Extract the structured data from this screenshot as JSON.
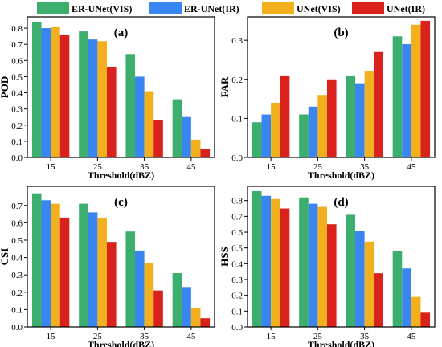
{
  "legend": {
    "items": [
      {
        "label": "ER-UNet(VIS)",
        "color": "#3CAE6E"
      },
      {
        "label": "ER-UNet(IR)",
        "color": "#3A86F0"
      },
      {
        "label": "UNet(VIS)",
        "color": "#F2B01E"
      },
      {
        "label": "UNet(IR)",
        "color": "#D9221B"
      }
    ]
  },
  "chart_data": [
    {
      "type": "bar",
      "panel": "(a)",
      "xlabel": "Threshold(dBZ)",
      "ylabel": "POD",
      "categories": [
        "15",
        "25",
        "35",
        "45"
      ],
      "ylim": [
        0,
        0.87
      ],
      "yticks": [
        "0.0",
        "0.1",
        "0.2",
        "0.3",
        "0.4",
        "0.5",
        "0.6",
        "0.7",
        "0.8"
      ],
      "series": [
        {
          "name": "ER-UNet(VIS)",
          "values": [
            0.84,
            0.78,
            0.64,
            0.36
          ]
        },
        {
          "name": "ER-UNet(IR)",
          "values": [
            0.8,
            0.73,
            0.5,
            0.25
          ]
        },
        {
          "name": "UNet(VIS)",
          "values": [
            0.81,
            0.72,
            0.41,
            0.11
          ]
        },
        {
          "name": "UNet(IR)",
          "values": [
            0.76,
            0.56,
            0.23,
            0.05
          ]
        }
      ]
    },
    {
      "type": "bar",
      "panel": "(b)",
      "xlabel": "Threshold(dBZ)",
      "ylabel": "FAR",
      "categories": [
        "15",
        "25",
        "35",
        "45"
      ],
      "ylim": [
        0,
        0.36
      ],
      "yticks": [
        "0.0",
        "0.1",
        "0.2",
        "0.3"
      ],
      "series": [
        {
          "name": "ER-UNet(VIS)",
          "values": [
            0.09,
            0.11,
            0.21,
            0.31
          ]
        },
        {
          "name": "ER-UNet(IR)",
          "values": [
            0.11,
            0.13,
            0.19,
            0.29
          ]
        },
        {
          "name": "UNet(VIS)",
          "values": [
            0.14,
            0.16,
            0.22,
            0.34
          ]
        },
        {
          "name": "UNet(IR)",
          "values": [
            0.21,
            0.2,
            0.27,
            0.35
          ]
        }
      ]
    },
    {
      "type": "bar",
      "panel": "(c)",
      "xlabel": "Threshold(dBZ)",
      "ylabel": "CSI",
      "categories": [
        "15",
        "25",
        "35",
        "45"
      ],
      "ylim": [
        0,
        0.81
      ],
      "yticks": [
        "0.0",
        "0.1",
        "0.2",
        "0.3",
        "0.4",
        "0.5",
        "0.6",
        "0.7"
      ],
      "series": [
        {
          "name": "ER-UNet(VIS)",
          "values": [
            0.77,
            0.71,
            0.55,
            0.31
          ]
        },
        {
          "name": "ER-UNet(IR)",
          "values": [
            0.73,
            0.66,
            0.44,
            0.23
          ]
        },
        {
          "name": "UNet(VIS)",
          "values": [
            0.71,
            0.63,
            0.37,
            0.11
          ]
        },
        {
          "name": "UNet(IR)",
          "values": [
            0.63,
            0.49,
            0.21,
            0.05
          ]
        }
      ]
    },
    {
      "type": "bar",
      "panel": "(d)",
      "xlabel": "Threshold(dBZ)",
      "ylabel": "HSS",
      "categories": [
        "15",
        "25",
        "35",
        "45"
      ],
      "ylim": [
        0,
        0.89
      ],
      "yticks": [
        "0.0",
        "0.1",
        "0.2",
        "0.3",
        "0.4",
        "0.5",
        "0.6",
        "0.7",
        "0.8"
      ],
      "series": [
        {
          "name": "ER-UNet(VIS)",
          "values": [
            0.86,
            0.82,
            0.71,
            0.48
          ]
        },
        {
          "name": "ER-UNet(IR)",
          "values": [
            0.83,
            0.78,
            0.61,
            0.37
          ]
        },
        {
          "name": "UNet(VIS)",
          "values": [
            0.81,
            0.76,
            0.54,
            0.19
          ]
        },
        {
          "name": "UNet(IR)",
          "values": [
            0.75,
            0.65,
            0.34,
            0.09
          ]
        }
      ]
    }
  ]
}
